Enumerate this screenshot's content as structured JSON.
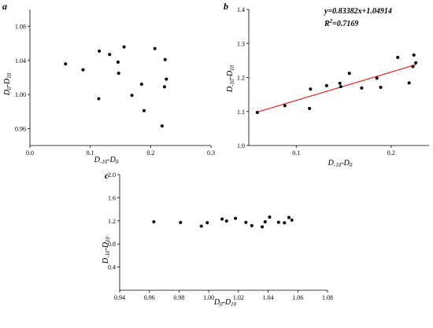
{
  "chart_data": [
    {
      "panel_label": "a",
      "type": "scatter",
      "xlabel_main": "D",
      "xlabel_sub1": "-10",
      "xlabel_mid": "-D",
      "xlabel_sub2": "0",
      "ylabel_main": "D",
      "ylabel_sub1": "0",
      "ylabel_mid": "-D",
      "ylabel_sub2": "10",
      "xlim": [
        0.0,
        0.3
      ],
      "ylim": [
        0.94,
        1.1
      ],
      "xticks": [
        0.0,
        0.1,
        0.2,
        0.3
      ],
      "xtick_labels": [
        "0.0",
        "0.1",
        "0.2",
        "0.3"
      ],
      "yticks": [
        0.96,
        1.0,
        1.04,
        1.08
      ],
      "ytick_labels": [
        "0.96",
        "1.00",
        "1.04",
        "1.08"
      ],
      "x": [
        0.059,
        0.088,
        0.114,
        0.115,
        0.132,
        0.146,
        0.147,
        0.156,
        0.169,
        0.185,
        0.189,
        0.207,
        0.219,
        0.223,
        0.224,
        0.226
      ],
      "y": [
        1.036,
        1.029,
        0.995,
        1.051,
        1.047,
        1.038,
        1.025,
        1.056,
        0.999,
        1.012,
        0.981,
        1.054,
        0.963,
        1.009,
        1.041,
        1.018
      ]
    },
    {
      "panel_label": "b",
      "type": "scatter",
      "xlabel_main": "D",
      "xlabel_sub1": "-10",
      "xlabel_mid": "-D",
      "xlabel_sub2": "0",
      "ylabel_main": "D",
      "ylabel_sub1": "-10",
      "ylabel_mid": "-D",
      "ylabel_sub2": "10",
      "xlim": [
        0.05,
        0.24
      ],
      "ylim": [
        1.0,
        1.4
      ],
      "xticks": [
        0.1,
        0.2
      ],
      "xtick_labels": [
        "0.1",
        "0.2"
      ],
      "yticks": [
        1.0,
        1.1,
        1.2,
        1.3,
        1.4
      ],
      "ytick_labels": [
        "1.0",
        "1.1",
        "1.2",
        "1.3",
        "1.4"
      ],
      "x": [
        0.059,
        0.088,
        0.114,
        0.115,
        0.132,
        0.146,
        0.147,
        0.156,
        0.169,
        0.185,
        0.189,
        0.207,
        0.219,
        0.223,
        0.224,
        0.226
      ],
      "y": [
        1.097,
        1.117,
        1.109,
        1.166,
        1.176,
        1.183,
        1.173,
        1.212,
        1.169,
        1.198,
        1.171,
        1.259,
        1.184,
        1.232,
        1.266,
        1.243
      ],
      "fit_line": {
        "slope": 0.83382,
        "intercept": 1.04914,
        "x_range": [
          0.059,
          0.226
        ],
        "color": "#e8241c"
      },
      "equation_text": "y=0.83382x+1.04914",
      "r2_prefix": "R",
      "r2_sup": "2",
      "r2_value": "=0.7169"
    },
    {
      "panel_label": "c",
      "type": "scatter",
      "xlabel_main": "D",
      "xlabel_sub1": "0",
      "xlabel_mid": "-D",
      "xlabel_sub2": "10",
      "ylabel_main": "D",
      "ylabel_sub1": "-10",
      "ylabel_mid": "-D",
      "ylabel_sub2": "10",
      "xlim": [
        0.94,
        1.08
      ],
      "ylim": [
        0.0,
        2.0
      ],
      "xticks": [
        0.94,
        0.96,
        0.98,
        1.0,
        1.02,
        1.04,
        1.06,
        1.08
      ],
      "xtick_labels": [
        "0.94",
        "0.96",
        "0.98",
        "1.00",
        "1.02",
        "1.04",
        "1.06",
        "1.08"
      ],
      "yticks": [
        0.4,
        0.8,
        1.2,
        1.6,
        2.0
      ],
      "ytick_labels": [
        "0.4",
        "0.8",
        "1.2",
        "1.6",
        "2.0"
      ],
      "x": [
        0.963,
        0.981,
        0.995,
        0.999,
        1.009,
        1.012,
        1.018,
        1.025,
        1.029,
        1.036,
        1.038,
        1.041,
        1.047,
        1.051,
        1.054,
        1.056
      ],
      "y": [
        1.184,
        1.171,
        1.109,
        1.169,
        1.232,
        1.198,
        1.243,
        1.173,
        1.117,
        1.097,
        1.183,
        1.266,
        1.176,
        1.166,
        1.259,
        1.212
      ]
    }
  ]
}
